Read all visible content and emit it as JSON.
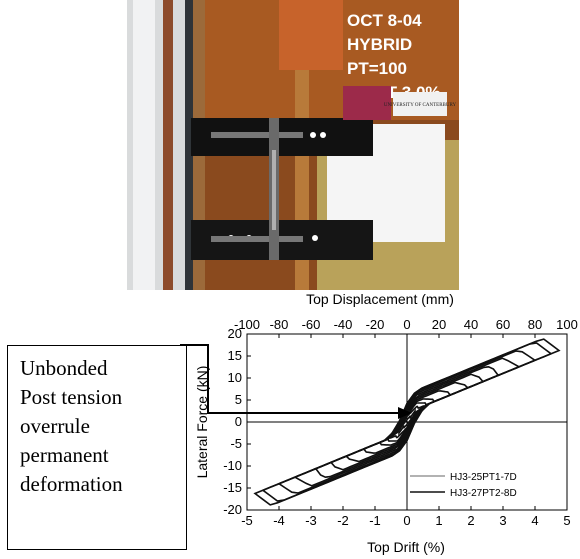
{
  "photo": {
    "label_lines": [
      "OCT 8-04",
      "HYBRID",
      "PT=100",
      "DRIFT 3.0%"
    ],
    "badge_text": "UNIVERSITY OF CANTERBURY"
  },
  "callout": {
    "lines": [
      "Unbonded",
      "Post tension",
      "overrule",
      "permanent",
      "deformation"
    ]
  },
  "chart_data": {
    "type": "line",
    "x_label": "Top Drift (%)",
    "x_top_label": "Top Displacement (mm)",
    "y_label": "Lateral Force (kN)",
    "xlim": [
      -5,
      5
    ],
    "ylim": [
      -20,
      20
    ],
    "x_ticks": [
      -5,
      -4,
      -3,
      -2,
      -1,
      0,
      1,
      2,
      3,
      4,
      5
    ],
    "x_top_ticks": [
      -100,
      -80,
      -60,
      -40,
      -20,
      0,
      20,
      40,
      60,
      80,
      100
    ],
    "y_ticks": [
      -20,
      -15,
      -10,
      -5,
      0,
      5,
      10,
      15,
      20
    ],
    "legend_position": "lower-right",
    "series": [
      {
        "name": "HJ3-25PT1-7D",
        "color": "#999999",
        "amplitudes": [
          0.5,
          1.0,
          1.5,
          2.0,
          2.5,
          3.0,
          3.5,
          4.0,
          4.5
        ]
      },
      {
        "name": "HJ3-27PT2-8D",
        "color": "#111111",
        "amplitudes": [
          0.25,
          0.5,
          0.75,
          1.0,
          1.5,
          2.0,
          2.5,
          3.0,
          3.5,
          4.0,
          4.5,
          4.75
        ]
      }
    ]
  }
}
